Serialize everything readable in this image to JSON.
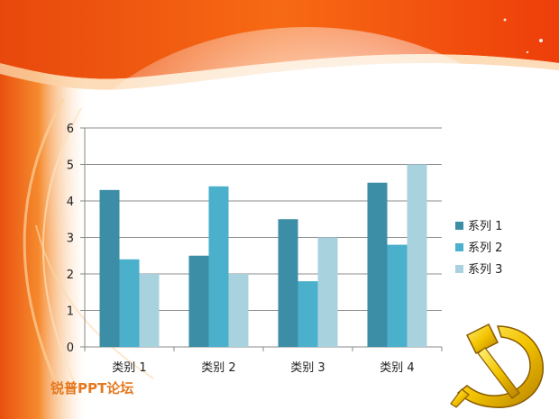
{
  "slide": {
    "watermark_text": "锐普PPT论坛"
  },
  "colors": {
    "series": [
      "#3b8ea5",
      "#4bb0cb",
      "#a9d2df"
    ],
    "axis": "#888888",
    "grid": "#8c8c8c",
    "background_orange": "#f26a12",
    "emblem_gold": "#f2c200"
  },
  "icons": [
    "hammer-sickle-emblem-icon"
  ],
  "chart_data": {
    "type": "bar",
    "title": "",
    "xlabel": "",
    "ylabel": "",
    "categories": [
      "类别 1",
      "类别 2",
      "类别 3",
      "类别 4"
    ],
    "series": [
      {
        "name": "系列 1",
        "values": [
          4.3,
          2.5,
          3.5,
          4.5
        ]
      },
      {
        "name": "系列 2",
        "values": [
          2.4,
          4.4,
          1.8,
          2.8
        ]
      },
      {
        "name": "系列 3",
        "values": [
          2.0,
          2.0,
          3.0,
          5.0
        ]
      }
    ],
    "ylim": [
      0,
      6
    ],
    "yticks": [
      0,
      1,
      2,
      3,
      4,
      5,
      6
    ],
    "grid": true,
    "legend_position": "right"
  }
}
